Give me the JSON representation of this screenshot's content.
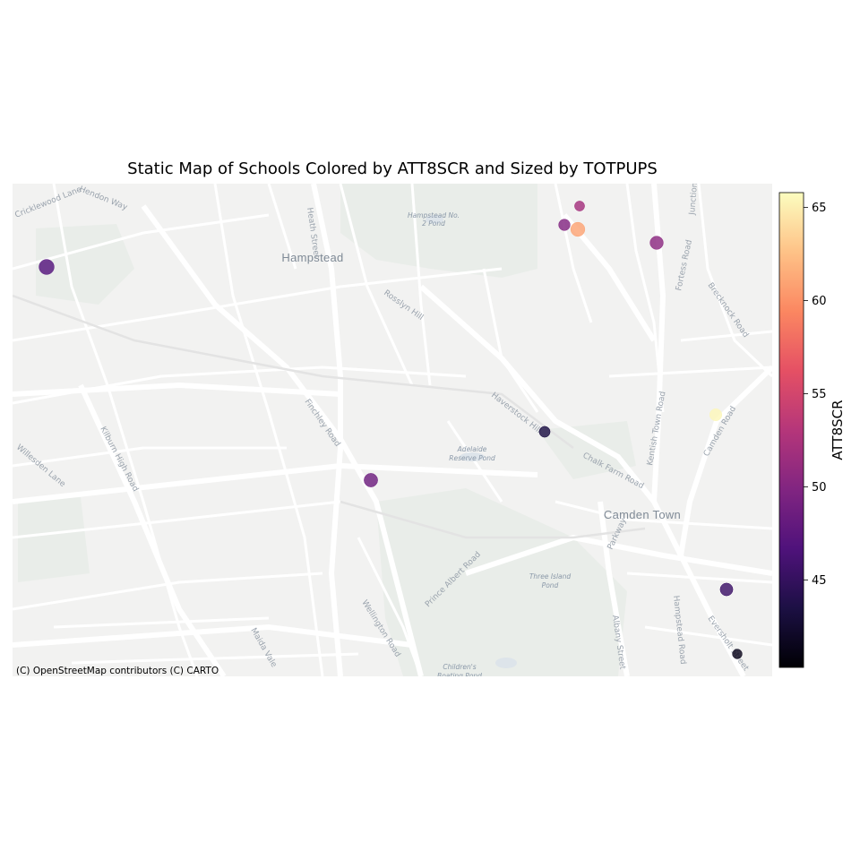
{
  "chart_data": {
    "type": "scatter",
    "title": "Static Map of Schools Colored by ATT8SCR and Sized by TOTPUPS",
    "color_variable": "ATT8SCR",
    "size_variable": "TOTPUPS",
    "colormap": "magma",
    "colorbar": {
      "label": "ATT8SCR",
      "range": [
        40.3,
        65.8
      ],
      "ticks": [
        45,
        50,
        55,
        60,
        65
      ]
    },
    "basemap_attribution": "(C) OpenStreetMap contributors (C) CARTO",
    "place_labels": {
      "hampstead": "Hampstead",
      "camden_town": "Camden Town"
    },
    "water_labels": [
      [
        "Hampstead No.",
        "2 Pond"
      ],
      [
        "Adelaide",
        "Reserve Pond"
      ],
      [
        "Three Island",
        "Pond"
      ],
      [
        "Children's",
        "Boating Pond"
      ]
    ],
    "street_labels": [
      "Finchley Road",
      "Haverstock Hill",
      "Chalk Farm Road",
      "Kentish Town Road",
      "Camden Road",
      "Rosslyn Hill",
      "Heath Street",
      "Fortess Road",
      "Brecknock Road",
      "Junction Road",
      "Kilburn High Road",
      "Prince Albert Road",
      "Albany Street",
      "Hampstead Road",
      "Wellington Road",
      "Maida Vale",
      "Parkway",
      "Eversholt Street",
      "Platts Lane",
      "Fitzjohn's Avenue",
      "Cricklewood Lane",
      "Hendon Way",
      "Willesden Lane"
    ],
    "schools_note": "relative point values estimated from marker colour and size",
    "schools": [
      {
        "att8scr": 47.0,
        "totpups": 1500
      },
      {
        "att8scr": 50.0,
        "totpups": 600
      },
      {
        "att8scr": 52.0,
        "totpups": 350
      },
      {
        "att8scr": 61.0,
        "totpups": 1250
      },
      {
        "att8scr": 50.5,
        "totpups": 1000
      },
      {
        "att8scr": 43.5,
        "totpups": 500
      },
      {
        "att8scr": 48.5,
        "totpups": 1100
      },
      {
        "att8scr": 65.5,
        "totpups": 750
      },
      {
        "att8scr": 45.5,
        "totpups": 850
      },
      {
        "att8scr": 41.5,
        "totpups": 300
      }
    ]
  }
}
